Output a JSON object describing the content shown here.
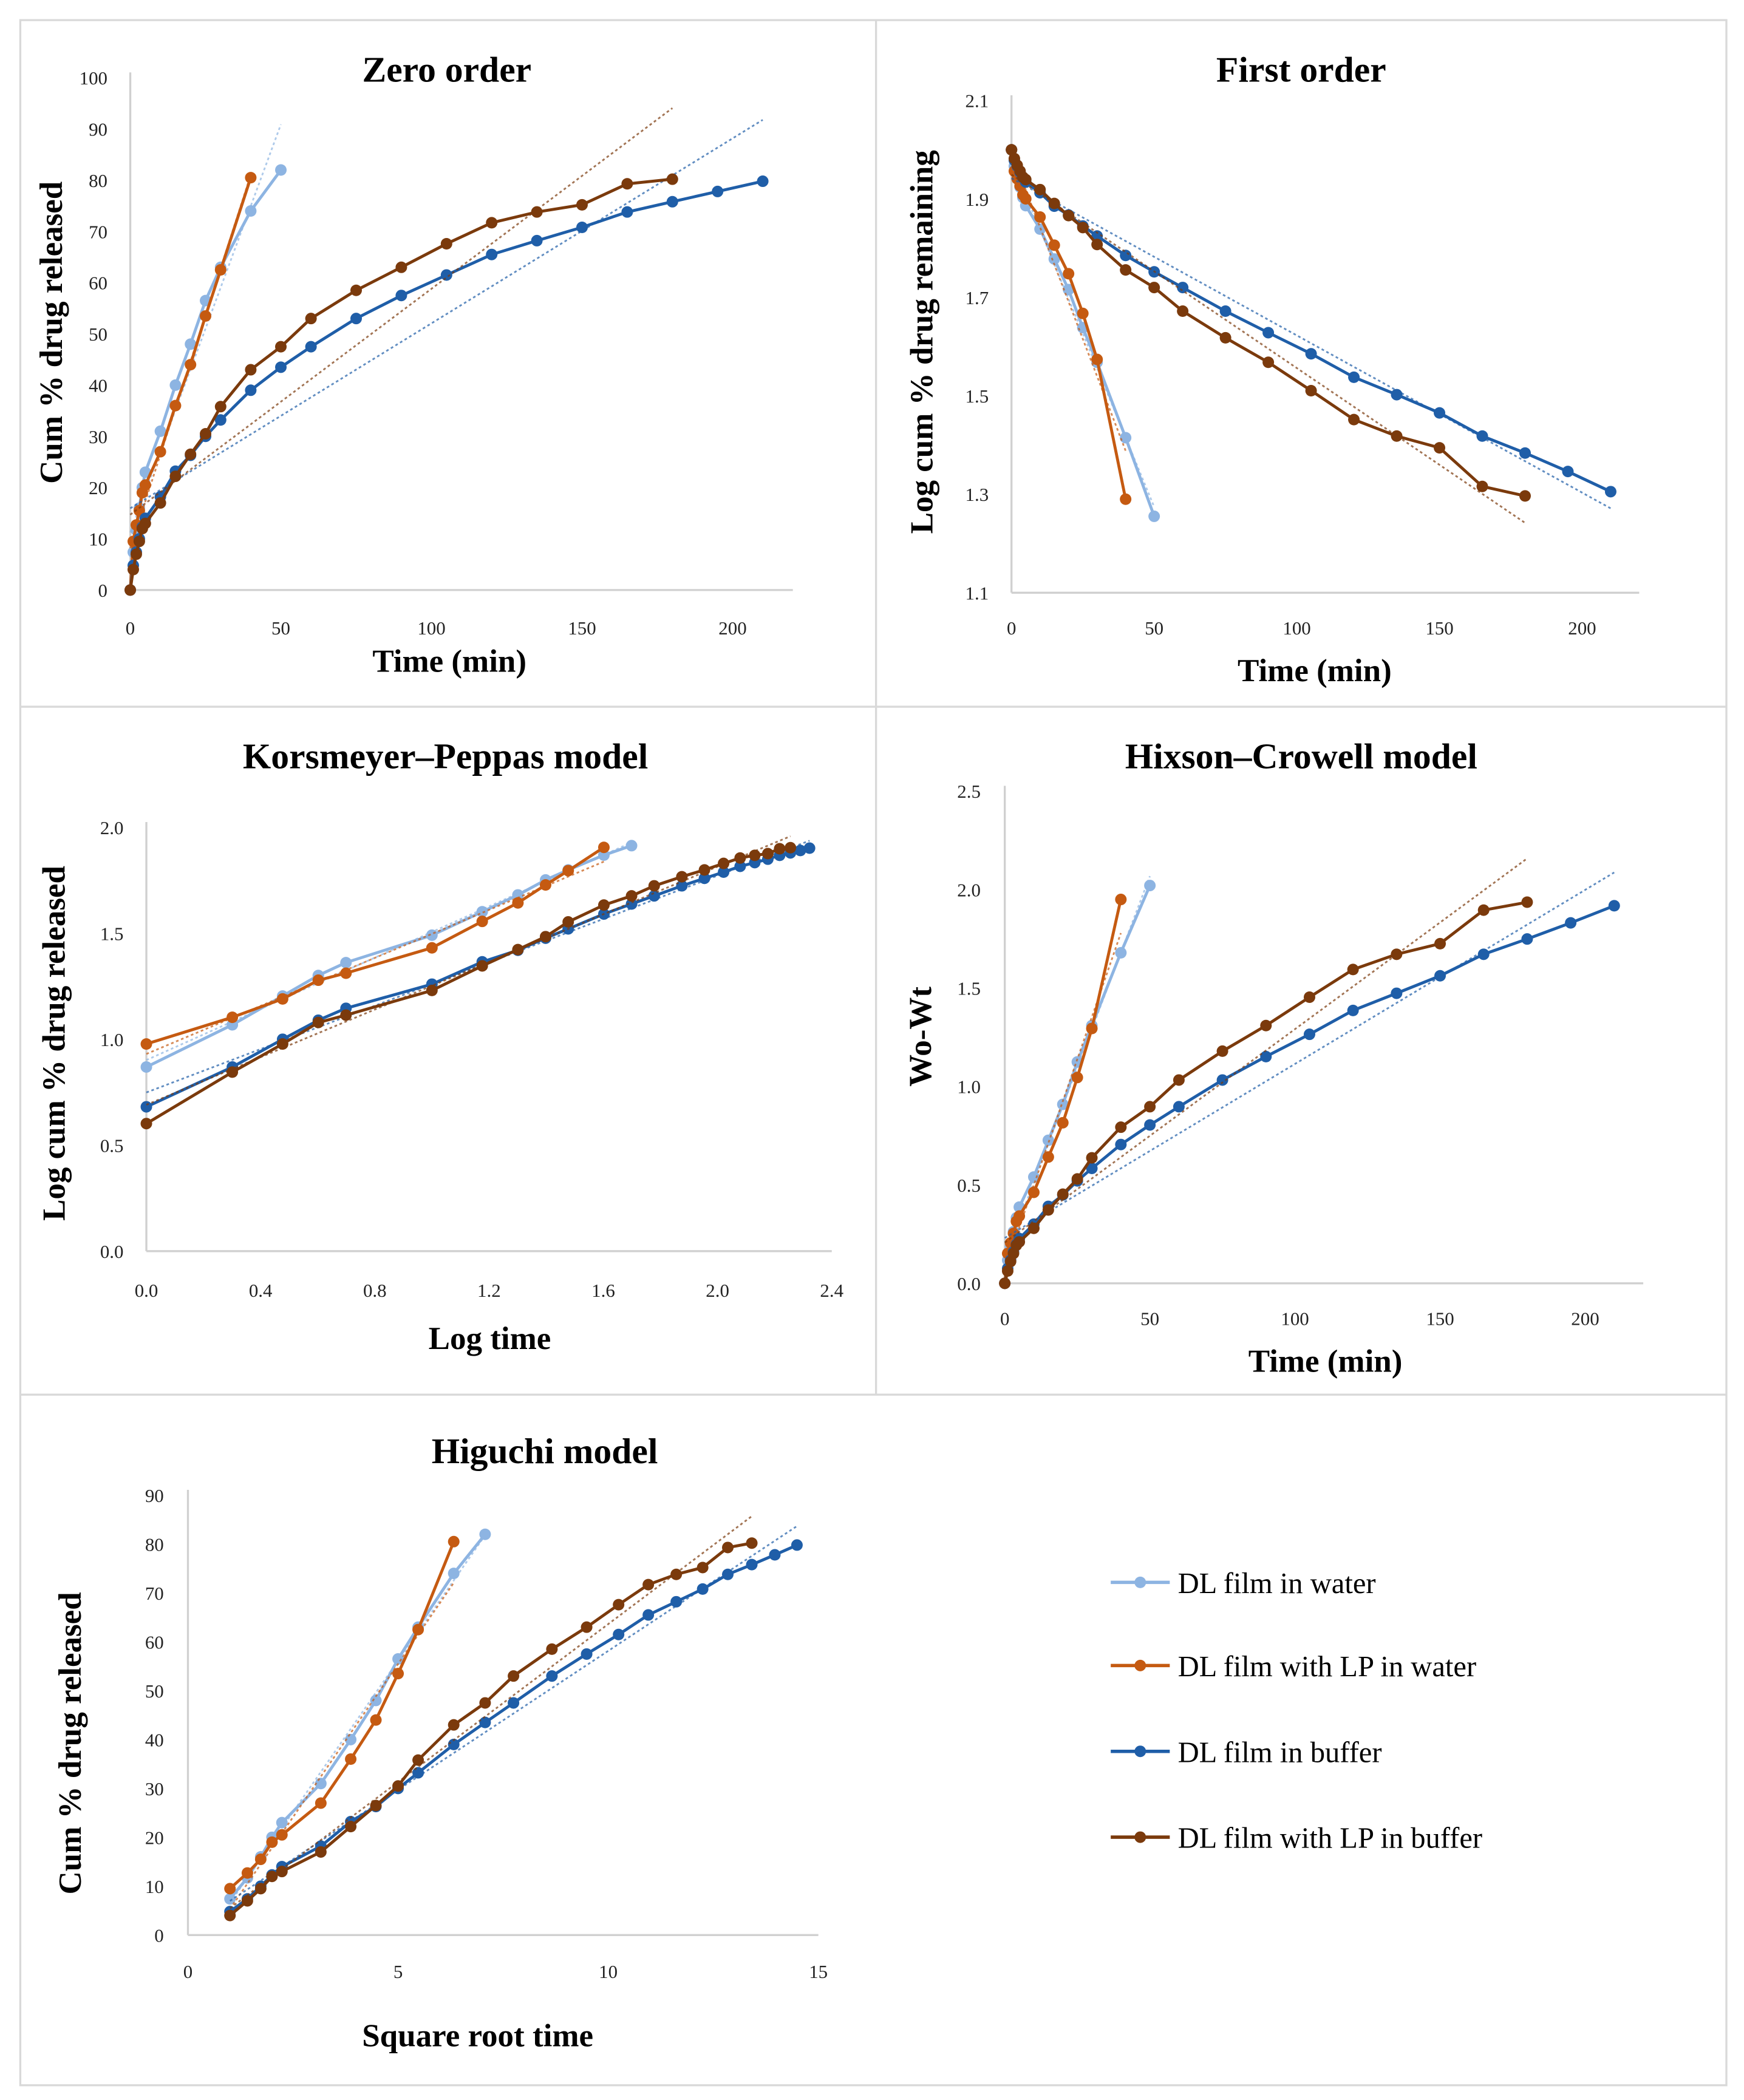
{
  "chart_data": {
    "type": "line",
    "legend_placement": "bottom-right",
    "series": [
      {
        "name": "DL film in water",
        "color": "#8db4e2",
        "time": [
          0,
          1,
          2,
          3,
          4,
          5,
          10,
          15,
          20,
          25,
          30,
          40,
          50
        ],
        "cum_release": [
          0,
          7.4,
          11.7,
          16,
          20,
          23,
          31,
          40,
          48,
          56.5,
          63,
          74,
          82
        ]
      },
      {
        "name": "DL film with LP in water",
        "color": "#c55a11",
        "time": [
          0,
          1,
          2,
          3,
          4,
          5,
          10,
          15,
          20,
          25,
          30,
          40
        ],
        "cum_release": [
          0,
          9.5,
          12.7,
          15.5,
          19,
          20.5,
          27,
          36,
          44,
          53.5,
          62.5,
          80.5
        ]
      },
      {
        "name": "DL film in buffer",
        "color": "#1f5ea8",
        "time": [
          0,
          1,
          2,
          3,
          4,
          5,
          10,
          15,
          20,
          25,
          30,
          40,
          50,
          60,
          75,
          90,
          105,
          120,
          135,
          150,
          165,
          180,
          195,
          210
        ],
        "cum_release": [
          0,
          4.8,
          7.4,
          10,
          12.3,
          14,
          18.2,
          23.2,
          26.3,
          30,
          33.2,
          39,
          43.5,
          47.5,
          53,
          57.5,
          61.5,
          65.5,
          68.2,
          70.8,
          73.8,
          75.8,
          77.8,
          79.8
        ]
      },
      {
        "name": "DL film with LP in buffer",
        "color": "#7b3a0c",
        "time": [
          0,
          1,
          2,
          3,
          4,
          5,
          10,
          15,
          20,
          25,
          30,
          40,
          50,
          60,
          75,
          90,
          105,
          120,
          135,
          150,
          165,
          180
        ],
        "cum_release": [
          0,
          4,
          7,
          9.5,
          12,
          13,
          17,
          22.2,
          26.5,
          30.5,
          35.8,
          43,
          47.5,
          53,
          58.5,
          63,
          67.6,
          71.7,
          73.8,
          75.2,
          79.3,
          80.2
        ]
      }
    ],
    "panels": [
      {
        "title": "Zero order",
        "type": "line",
        "x_transform": "time",
        "y_transform": "cum_release",
        "xlabel": "Time (min)",
        "ylabel": "Cum % drug released",
        "xlim": [
          0,
          220
        ],
        "ylim": [
          0,
          100
        ],
        "xticks": [
          "0",
          "50",
          "100",
          "150",
          "200"
        ],
        "xtick_values": [
          0,
          50,
          100,
          150,
          200
        ],
        "yticks": [
          "0",
          "10",
          "20",
          "30",
          "40",
          "50",
          "60",
          "70",
          "80",
          "90",
          "100"
        ],
        "ytick_values": [
          0,
          10,
          20,
          30,
          40,
          50,
          60,
          70,
          80,
          90,
          100
        ],
        "trendlines": true,
        "grid": false
      },
      {
        "title": "First order",
        "type": "line",
        "x_transform": "time",
        "y_transform": "log10(100 - cum_release)",
        "xlabel": "Time (min)",
        "ylabel": "Log cum % drug remaining",
        "xlim": [
          0,
          220
        ],
        "ylim": [
          1.1,
          2.1
        ],
        "xticks": [
          "0",
          "50",
          "100",
          "150",
          "200"
        ],
        "xtick_values": [
          0,
          50,
          100,
          150,
          200
        ],
        "yticks": [
          "1.1",
          "1.3",
          "1.5",
          "1.7",
          "1.9",
          "2.1"
        ],
        "ytick_values": [
          1.1,
          1.3,
          1.5,
          1.7,
          1.9,
          2.1
        ],
        "trendlines": true,
        "grid": false
      },
      {
        "title": "Korsmeyer–Peppas model",
        "type": "line",
        "x_transform": "log10(time)",
        "y_transform": "log10(cum_release)",
        "xlabel": "Log time",
        "ylabel": "Log cum % drug released",
        "xlim": [
          0,
          2.4
        ],
        "ylim": [
          0,
          2.0
        ],
        "xticks": [
          "0.0",
          "0.4",
          "0.8",
          "1.2",
          "1.6",
          "2.0",
          "2.4"
        ],
        "xtick_values": [
          0,
          0.4,
          0.8,
          1.2,
          1.6,
          2.0,
          2.4
        ],
        "yticks": [
          "0.0",
          "0.5",
          "1.0",
          "1.5",
          "2.0"
        ],
        "ytick_values": [
          0,
          0.5,
          1.0,
          1.5,
          2.0
        ],
        "trendlines": true,
        "grid": false
      },
      {
        "title": "Hixson–Crowell model",
        "type": "line",
        "x_transform": "time",
        "y_transform": "cbrt(100) - cbrt(100 - cum_release)",
        "xlabel": "Time (min)",
        "ylabel": "Wo-Wt",
        "xlim": [
          0,
          220
        ],
        "ylim": [
          0,
          2.5
        ],
        "xticks": [
          "0",
          "50",
          "100",
          "150",
          "200"
        ],
        "xtick_values": [
          0,
          50,
          100,
          150,
          200
        ],
        "yticks": [
          "0.0",
          "0.5",
          "1.0",
          "1.5",
          "2.0",
          "2.5"
        ],
        "ytick_values": [
          0,
          0.5,
          1.0,
          1.5,
          2.0,
          2.5
        ],
        "trendlines": true,
        "grid": false
      },
      {
        "title": "Higuchi model",
        "type": "line",
        "x_transform": "sqrt(time)",
        "y_transform": "cum_release",
        "xlabel": "Square root time",
        "ylabel": "Cum % drug released",
        "xlim": [
          0,
          15
        ],
        "ylim": [
          0,
          90
        ],
        "xticks": [
          "0",
          "5",
          "10",
          "15"
        ],
        "xtick_values": [
          0,
          5,
          10,
          15
        ],
        "yticks": [
          "0",
          "10",
          "20",
          "30",
          "40",
          "50",
          "60",
          "70",
          "80",
          "90"
        ],
        "ytick_values": [
          0,
          10,
          20,
          30,
          40,
          50,
          60,
          70,
          80,
          90
        ],
        "trendlines": true,
        "grid": false
      }
    ]
  }
}
